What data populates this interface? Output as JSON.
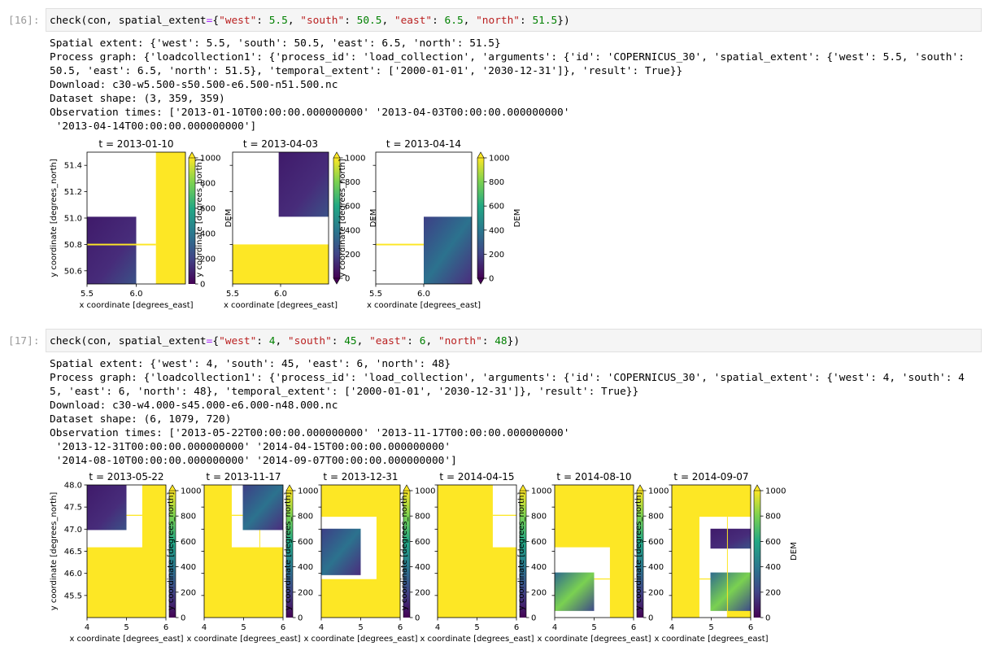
{
  "cells": [
    {
      "prompt": "[16]:",
      "code": [
        {
          "text": "check(con, spatial_extent",
          "color": "#000000"
        },
        {
          "text": "=",
          "color": "#aa22ff"
        },
        {
          "text": "{",
          "color": "#000000"
        },
        {
          "text": "\"west\"",
          "color": "#ba2121"
        },
        {
          "text": ": ",
          "color": "#000000"
        },
        {
          "text": "5.5",
          "color": "#008000"
        },
        {
          "text": ", ",
          "color": "#000000"
        },
        {
          "text": "\"south\"",
          "color": "#ba2121"
        },
        {
          "text": ": ",
          "color": "#000000"
        },
        {
          "text": "50.5",
          "color": "#008000"
        },
        {
          "text": ", ",
          "color": "#000000"
        },
        {
          "text": "\"east\"",
          "color": "#ba2121"
        },
        {
          "text": ": ",
          "color": "#000000"
        },
        {
          "text": "6.5",
          "color": "#008000"
        },
        {
          "text": ", ",
          "color": "#000000"
        },
        {
          "text": "\"north\"",
          "color": "#ba2121"
        },
        {
          "text": ": ",
          "color": "#000000"
        },
        {
          "text": "51.5",
          "color": "#008000"
        },
        {
          "text": "})",
          "color": "#000000"
        }
      ],
      "output": [
        "Spatial extent: {'west': 5.5, 'south': 50.5, 'east': 6.5, 'north': 51.5}",
        "Process graph: {'loadcollection1': {'process_id': 'load_collection', 'arguments': {'id': 'COPERNICUS_30', 'spatial_extent': {'west': 5.5, 'south':",
        "50.5, 'east': 6.5, 'north': 51.5}, 'temporal_extent': ['2000-01-01', '2030-12-31']}, 'result': True}}",
        "Download: c30-w5.500-s50.500-e6.500-n51.500.nc",
        "Dataset shape: (3, 359, 359)",
        "Observation times: ['2013-01-10T00:00:00.000000000' '2013-04-03T00:00:00.000000000'",
        " '2013-04-14T00:00:00.000000000']"
      ],
      "plots": {
        "titles": [
          "t = 2013-01-10",
          "t = 2013-04-03",
          "t = 2013-04-14"
        ],
        "xlabel": "x coordinate [degrees_east]",
        "ylabel": "y coordinate [degrees_north]",
        "colorbar_label": "DEM",
        "xlim": [
          5.5,
          6.5
        ],
        "ylim": [
          50.5,
          51.5
        ],
        "xticks": [
          5.5,
          {
            "value": 6,
            "label": "6.0"
          }
        ],
        "yticks": [
          50.6,
          50.8,
          {
            "value": 51,
            "label": "51.0"
          },
          51.2,
          51.4
        ],
        "colorbar_lim": [
          0,
          1000
        ],
        "colorbar_ticks": [
          0,
          200,
          400,
          600,
          800,
          1000
        ]
      }
    },
    {
      "prompt": "[17]:",
      "code": [
        {
          "text": "check(con, spatial_extent",
          "color": "#000000"
        },
        {
          "text": "=",
          "color": "#aa22ff"
        },
        {
          "text": "{",
          "color": "#000000"
        },
        {
          "text": "\"west\"",
          "color": "#ba2121"
        },
        {
          "text": ": ",
          "color": "#000000"
        },
        {
          "text": "4",
          "color": "#008000"
        },
        {
          "text": ", ",
          "color": "#000000"
        },
        {
          "text": "\"south\"",
          "color": "#ba2121"
        },
        {
          "text": ": ",
          "color": "#000000"
        },
        {
          "text": "45",
          "color": "#008000"
        },
        {
          "text": ", ",
          "color": "#000000"
        },
        {
          "text": "\"east\"",
          "color": "#ba2121"
        },
        {
          "text": ": ",
          "color": "#000000"
        },
        {
          "text": "6",
          "color": "#008000"
        },
        {
          "text": ", ",
          "color": "#000000"
        },
        {
          "text": "\"north\"",
          "color": "#ba2121"
        },
        {
          "text": ": ",
          "color": "#000000"
        },
        {
          "text": "48",
          "color": "#008000"
        },
        {
          "text": "})",
          "color": "#000000"
        }
      ],
      "output": [
        "Spatial extent: {'west': 4, 'south': 45, 'east': 6, 'north': 48}",
        "Process graph: {'loadcollection1': {'process_id': 'load_collection', 'arguments': {'id': 'COPERNICUS_30', 'spatial_extent': {'west': 4, 'south': 4",
        "5, 'east': 6, 'north': 48}, 'temporal_extent': ['2000-01-01', '2030-12-31']}, 'result': True}}",
        "Download: c30-w4.000-s45.000-e6.000-n48.000.nc",
        "Dataset shape: (6, 1079, 720)",
        "Observation times: ['2013-05-22T00:00:00.000000000' '2013-11-17T00:00:00.000000000'",
        " '2013-12-31T00:00:00.000000000' '2014-04-15T00:00:00.000000000'",
        " '2014-08-10T00:00:00.000000000' '2014-09-07T00:00:00.000000000']"
      ],
      "plots": {
        "titles": [
          "t = 2013-05-22",
          "t = 2013-11-17",
          "t = 2013-12-31",
          "t = 2014-04-15",
          "t = 2014-08-10",
          "t = 2014-09-07"
        ],
        "xlabel": "x coordinate [degrees_east]",
        "ylabel": "y coordinate [degrees_north]",
        "colorbar_label": "DEM",
        "xlim": [
          4,
          6
        ],
        "ylim": [
          45,
          48
        ],
        "xticks": [
          4,
          5,
          6
        ],
        "yticks": [
          45.5,
          {
            "value": 46,
            "label": "46.0"
          },
          46.5,
          {
            "value": 47,
            "label": "47.0"
          },
          47.5,
          {
            "value": 48,
            "label": "48.0"
          }
        ],
        "colorbar_lim": [
          0,
          1000
        ],
        "colorbar_ticks": [
          0,
          200,
          400,
          600,
          800,
          1000
        ]
      }
    }
  ]
}
